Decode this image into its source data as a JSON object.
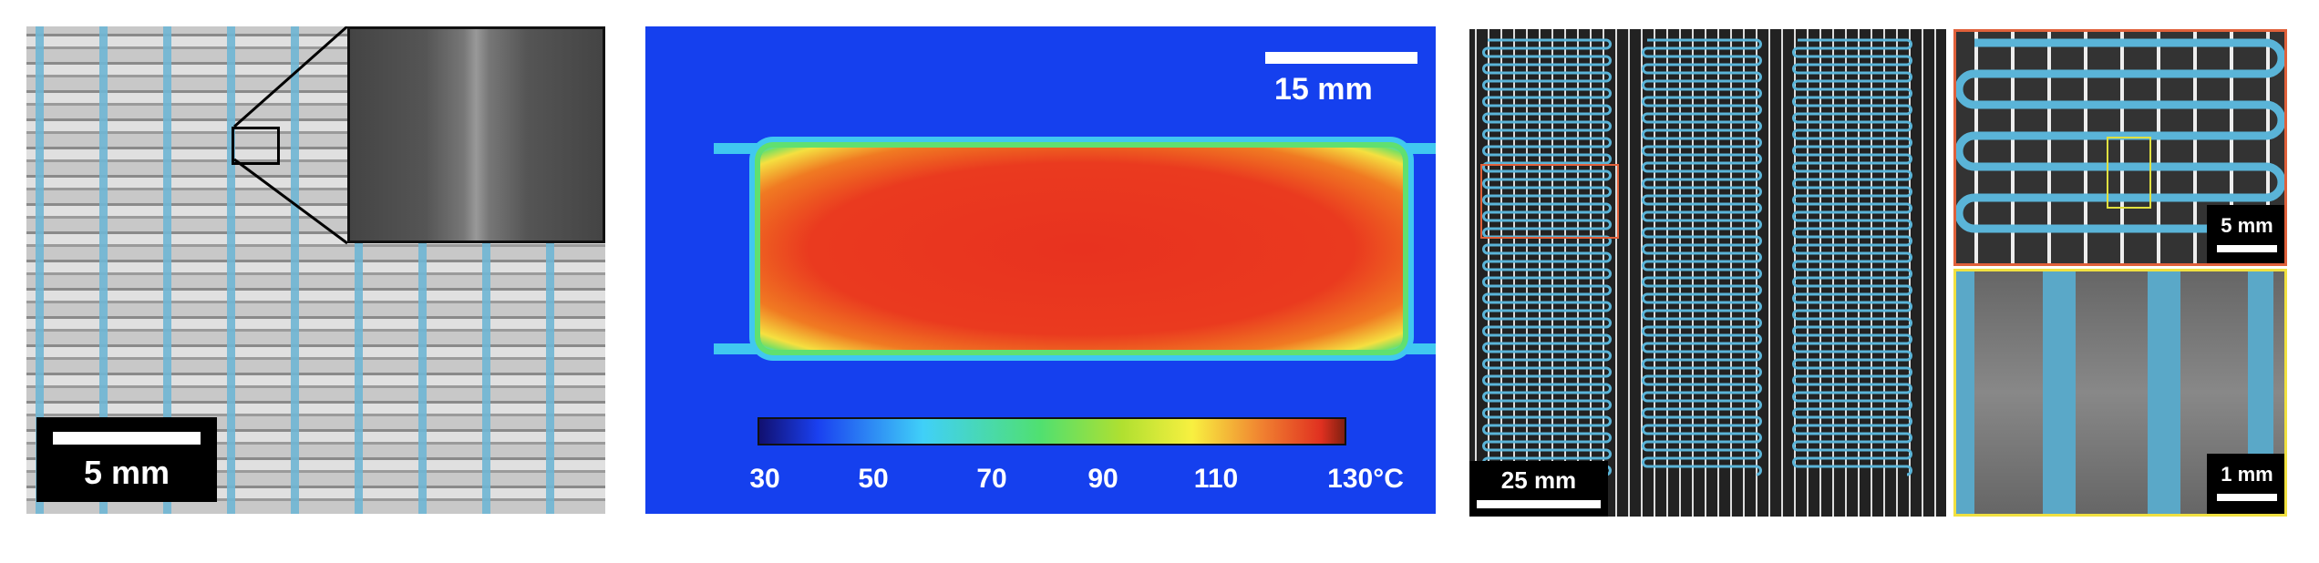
{
  "panels": [
    {
      "id": "fabric-micrograph",
      "scale_bar": "5 mm",
      "fiber_color": "#6fb6d4"
    },
    {
      "id": "thermal-map",
      "scale_bar": "15 mm",
      "colorbar": {
        "ticks": [
          "30",
          "50",
          "70",
          "90",
          "110",
          "130°C"
        ]
      }
    },
    {
      "id": "serpentine-heaters",
      "scale_bar": "25 mm",
      "highlight_color": "#e0603a"
    },
    {
      "id": "serpentine-zoom",
      "scale_bar": "5 mm",
      "border_color": "#e0603a"
    },
    {
      "id": "sem-zoom",
      "scale_bar": "1 mm",
      "border_color": "#f0e040"
    }
  ]
}
